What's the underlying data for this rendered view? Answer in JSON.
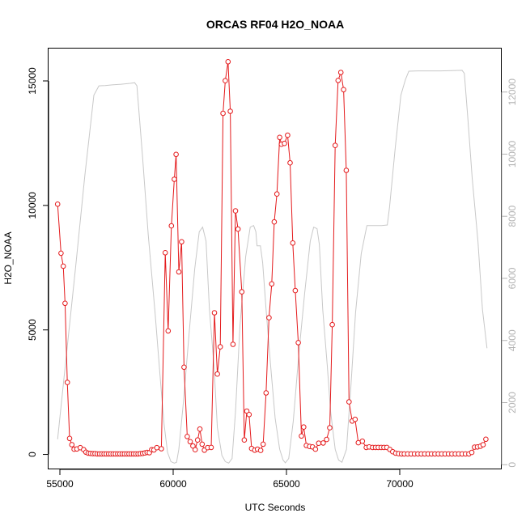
{
  "chart_data": {
    "type": "line",
    "title": "ORCAS RF04 H2O_NOAA",
    "xlabel": "UTC Seconds",
    "ylabel": "H2O_NOAA",
    "xlim": [
      54500,
      74500
    ],
    "ylim": [
      -600,
      16300
    ],
    "y2lim": [
      -150,
      13400
    ],
    "x_ticks": [
      55000,
      60000,
      65000,
      70000
    ],
    "y_ticks": [
      0,
      5000,
      10000,
      15000
    ],
    "y2_ticks": [
      0,
      2000,
      4000,
      6000,
      8000,
      10000,
      12000
    ],
    "series": [
      {
        "color": "#e41a1c",
        "marker": "open-circle",
        "points": [
          [
            54900,
            10050
          ],
          [
            55050,
            8080
          ],
          [
            55150,
            7560
          ],
          [
            55230,
            6070
          ],
          [
            55330,
            2890
          ],
          [
            55430,
            640
          ],
          [
            55530,
            390
          ],
          [
            55630,
            210
          ],
          [
            55750,
            220
          ],
          [
            55900,
            270
          ],
          [
            56050,
            190
          ],
          [
            56150,
            90
          ],
          [
            56250,
            50
          ],
          [
            56350,
            40
          ],
          [
            56450,
            30
          ],
          [
            56550,
            30
          ],
          [
            56650,
            20
          ],
          [
            56750,
            20
          ],
          [
            56850,
            20
          ],
          [
            56950,
            20
          ],
          [
            57050,
            20
          ],
          [
            57150,
            20
          ],
          [
            57250,
            20
          ],
          [
            57350,
            20
          ],
          [
            57450,
            20
          ],
          [
            57550,
            20
          ],
          [
            57650,
            20
          ],
          [
            57750,
            20
          ],
          [
            57850,
            20
          ],
          [
            57950,
            20
          ],
          [
            58050,
            20
          ],
          [
            58150,
            20
          ],
          [
            58250,
            20
          ],
          [
            58350,
            20
          ],
          [
            58450,
            20
          ],
          [
            58550,
            30
          ],
          [
            58650,
            40
          ],
          [
            58750,
            60
          ],
          [
            58850,
            80
          ],
          [
            58950,
            70
          ],
          [
            59050,
            190
          ],
          [
            59150,
            180
          ],
          [
            59280,
            270
          ],
          [
            59480,
            230
          ],
          [
            59650,
            8100
          ],
          [
            59780,
            4960
          ],
          [
            59920,
            9180
          ],
          [
            60050,
            11050
          ],
          [
            60130,
            12050
          ],
          [
            60250,
            7330
          ],
          [
            60370,
            8540
          ],
          [
            60480,
            3500
          ],
          [
            60620,
            720
          ],
          [
            60750,
            510
          ],
          [
            60870,
            340
          ],
          [
            60970,
            190
          ],
          [
            61080,
            580
          ],
          [
            61180,
            1020
          ],
          [
            61280,
            410
          ],
          [
            61380,
            170
          ],
          [
            61520,
            270
          ],
          [
            61680,
            280
          ],
          [
            61820,
            5690
          ],
          [
            61950,
            3230
          ],
          [
            62080,
            4320
          ],
          [
            62200,
            13700
          ],
          [
            62300,
            15010
          ],
          [
            62420,
            15770
          ],
          [
            62520,
            13780
          ],
          [
            62640,
            4420
          ],
          [
            62750,
            9780
          ],
          [
            62860,
            9050
          ],
          [
            63030,
            6530
          ],
          [
            63140,
            580
          ],
          [
            63250,
            1740
          ],
          [
            63350,
            1600
          ],
          [
            63460,
            240
          ],
          [
            63600,
            170
          ],
          [
            63720,
            210
          ],
          [
            63860,
            160
          ],
          [
            63970,
            410
          ],
          [
            64100,
            2470
          ],
          [
            64230,
            5490
          ],
          [
            64350,
            6850
          ],
          [
            64460,
            9340
          ],
          [
            64580,
            10460
          ],
          [
            64700,
            12730
          ],
          [
            64780,
            12460
          ],
          [
            64910,
            12490
          ],
          [
            65050,
            12820
          ],
          [
            65160,
            11710
          ],
          [
            65280,
            8490
          ],
          [
            65390,
            6580
          ],
          [
            65520,
            4490
          ],
          [
            65660,
            740
          ],
          [
            65760,
            1100
          ],
          [
            65880,
            360
          ],
          [
            66020,
            320
          ],
          [
            66150,
            300
          ],
          [
            66280,
            210
          ],
          [
            66420,
            450
          ],
          [
            66620,
            460
          ],
          [
            66770,
            600
          ],
          [
            66910,
            1070
          ],
          [
            67020,
            5210
          ],
          [
            67150,
            12410
          ],
          [
            67280,
            15020
          ],
          [
            67400,
            15340
          ],
          [
            67520,
            14650
          ],
          [
            67640,
            11410
          ],
          [
            67760,
            2110
          ],
          [
            67900,
            1340
          ],
          [
            68030,
            1410
          ],
          [
            68170,
            470
          ],
          [
            68350,
            530
          ],
          [
            68520,
            280
          ],
          [
            68650,
            300
          ],
          [
            68800,
            280
          ],
          [
            68930,
            280
          ],
          [
            69050,
            280
          ],
          [
            69180,
            280
          ],
          [
            69300,
            280
          ],
          [
            69430,
            280
          ],
          [
            69560,
            200
          ],
          [
            69690,
            110
          ],
          [
            69820,
            50
          ],
          [
            69950,
            30
          ],
          [
            70080,
            20
          ],
          [
            70200,
            20
          ],
          [
            70350,
            20
          ],
          [
            70500,
            20
          ],
          [
            70650,
            20
          ],
          [
            70800,
            20
          ],
          [
            70950,
            20
          ],
          [
            71100,
            20
          ],
          [
            71250,
            20
          ],
          [
            71400,
            20
          ],
          [
            71550,
            20
          ],
          [
            71700,
            20
          ],
          [
            71850,
            20
          ],
          [
            72000,
            20
          ],
          [
            72150,
            20
          ],
          [
            72300,
            20
          ],
          [
            72450,
            20
          ],
          [
            72600,
            20
          ],
          [
            72750,
            20
          ],
          [
            72900,
            20
          ],
          [
            73050,
            20
          ],
          [
            73180,
            80
          ],
          [
            73300,
            290
          ],
          [
            73430,
            300
          ],
          [
            73560,
            330
          ],
          [
            73680,
            390
          ],
          [
            73800,
            610
          ]
        ]
      },
      {
        "axis": "right",
        "color": "#c8c8c8",
        "points": [
          [
            54900,
            820
          ],
          [
            55300,
            3620
          ],
          [
            55700,
            6400
          ],
          [
            56100,
            9300
          ],
          [
            56500,
            11900
          ],
          [
            56720,
            12200
          ],
          [
            57000,
            12210
          ],
          [
            57300,
            12230
          ],
          [
            57700,
            12250
          ],
          [
            58100,
            12280
          ],
          [
            58300,
            12300
          ],
          [
            58400,
            12200
          ],
          [
            58650,
            9900
          ],
          [
            58900,
            7400
          ],
          [
            59200,
            4900
          ],
          [
            59450,
            2600
          ],
          [
            59600,
            1300
          ],
          [
            59750,
            400
          ],
          [
            59900,
            100
          ],
          [
            60050,
            50
          ],
          [
            60150,
            80
          ],
          [
            60250,
            500
          ],
          [
            60450,
            2000
          ],
          [
            60700,
            4200
          ],
          [
            60950,
            6300
          ],
          [
            61150,
            7500
          ],
          [
            61300,
            7650
          ],
          [
            61450,
            7200
          ],
          [
            61600,
            5000
          ],
          [
            61800,
            3200
          ],
          [
            61950,
            1200
          ],
          [
            62150,
            300
          ],
          [
            62300,
            100
          ],
          [
            62450,
            50
          ],
          [
            62600,
            200
          ],
          [
            62750,
            1700
          ],
          [
            62950,
            4500
          ],
          [
            63200,
            6700
          ],
          [
            63400,
            7650
          ],
          [
            63550,
            7700
          ],
          [
            63650,
            7500
          ],
          [
            63700,
            7050
          ],
          [
            63850,
            7050
          ],
          [
            63950,
            6500
          ],
          [
            64100,
            5000
          ],
          [
            64300,
            3200
          ],
          [
            64500,
            1500
          ],
          [
            64700,
            500
          ],
          [
            64850,
            150
          ],
          [
            64950,
            60
          ],
          [
            65100,
            200
          ],
          [
            65300,
            1400
          ],
          [
            65550,
            3600
          ],
          [
            65800,
            5500
          ],
          [
            66050,
            7200
          ],
          [
            66200,
            7650
          ],
          [
            66350,
            7600
          ],
          [
            66450,
            7100
          ],
          [
            66600,
            5000
          ],
          [
            66800,
            3200
          ],
          [
            66950,
            1700
          ],
          [
            67150,
            500
          ],
          [
            67300,
            150
          ],
          [
            67450,
            80
          ],
          [
            67650,
            500
          ],
          [
            67850,
            2600
          ],
          [
            68050,
            4900
          ],
          [
            68300,
            6800
          ],
          [
            68550,
            7700
          ],
          [
            68650,
            7700
          ],
          [
            68900,
            7700
          ],
          [
            69200,
            7700
          ],
          [
            69450,
            7720
          ],
          [
            69550,
            8300
          ],
          [
            69800,
            10200
          ],
          [
            70050,
            11900
          ],
          [
            70250,
            12400
          ],
          [
            70400,
            12670
          ],
          [
            70800,
            12680
          ],
          [
            71300,
            12680
          ],
          [
            71800,
            12680
          ],
          [
            72300,
            12690
          ],
          [
            72750,
            12700
          ],
          [
            72850,
            12600
          ],
          [
            73000,
            11200
          ],
          [
            73200,
            9200
          ],
          [
            73450,
            7200
          ],
          [
            73650,
            5000
          ],
          [
            73850,
            3750
          ]
        ]
      }
    ]
  }
}
